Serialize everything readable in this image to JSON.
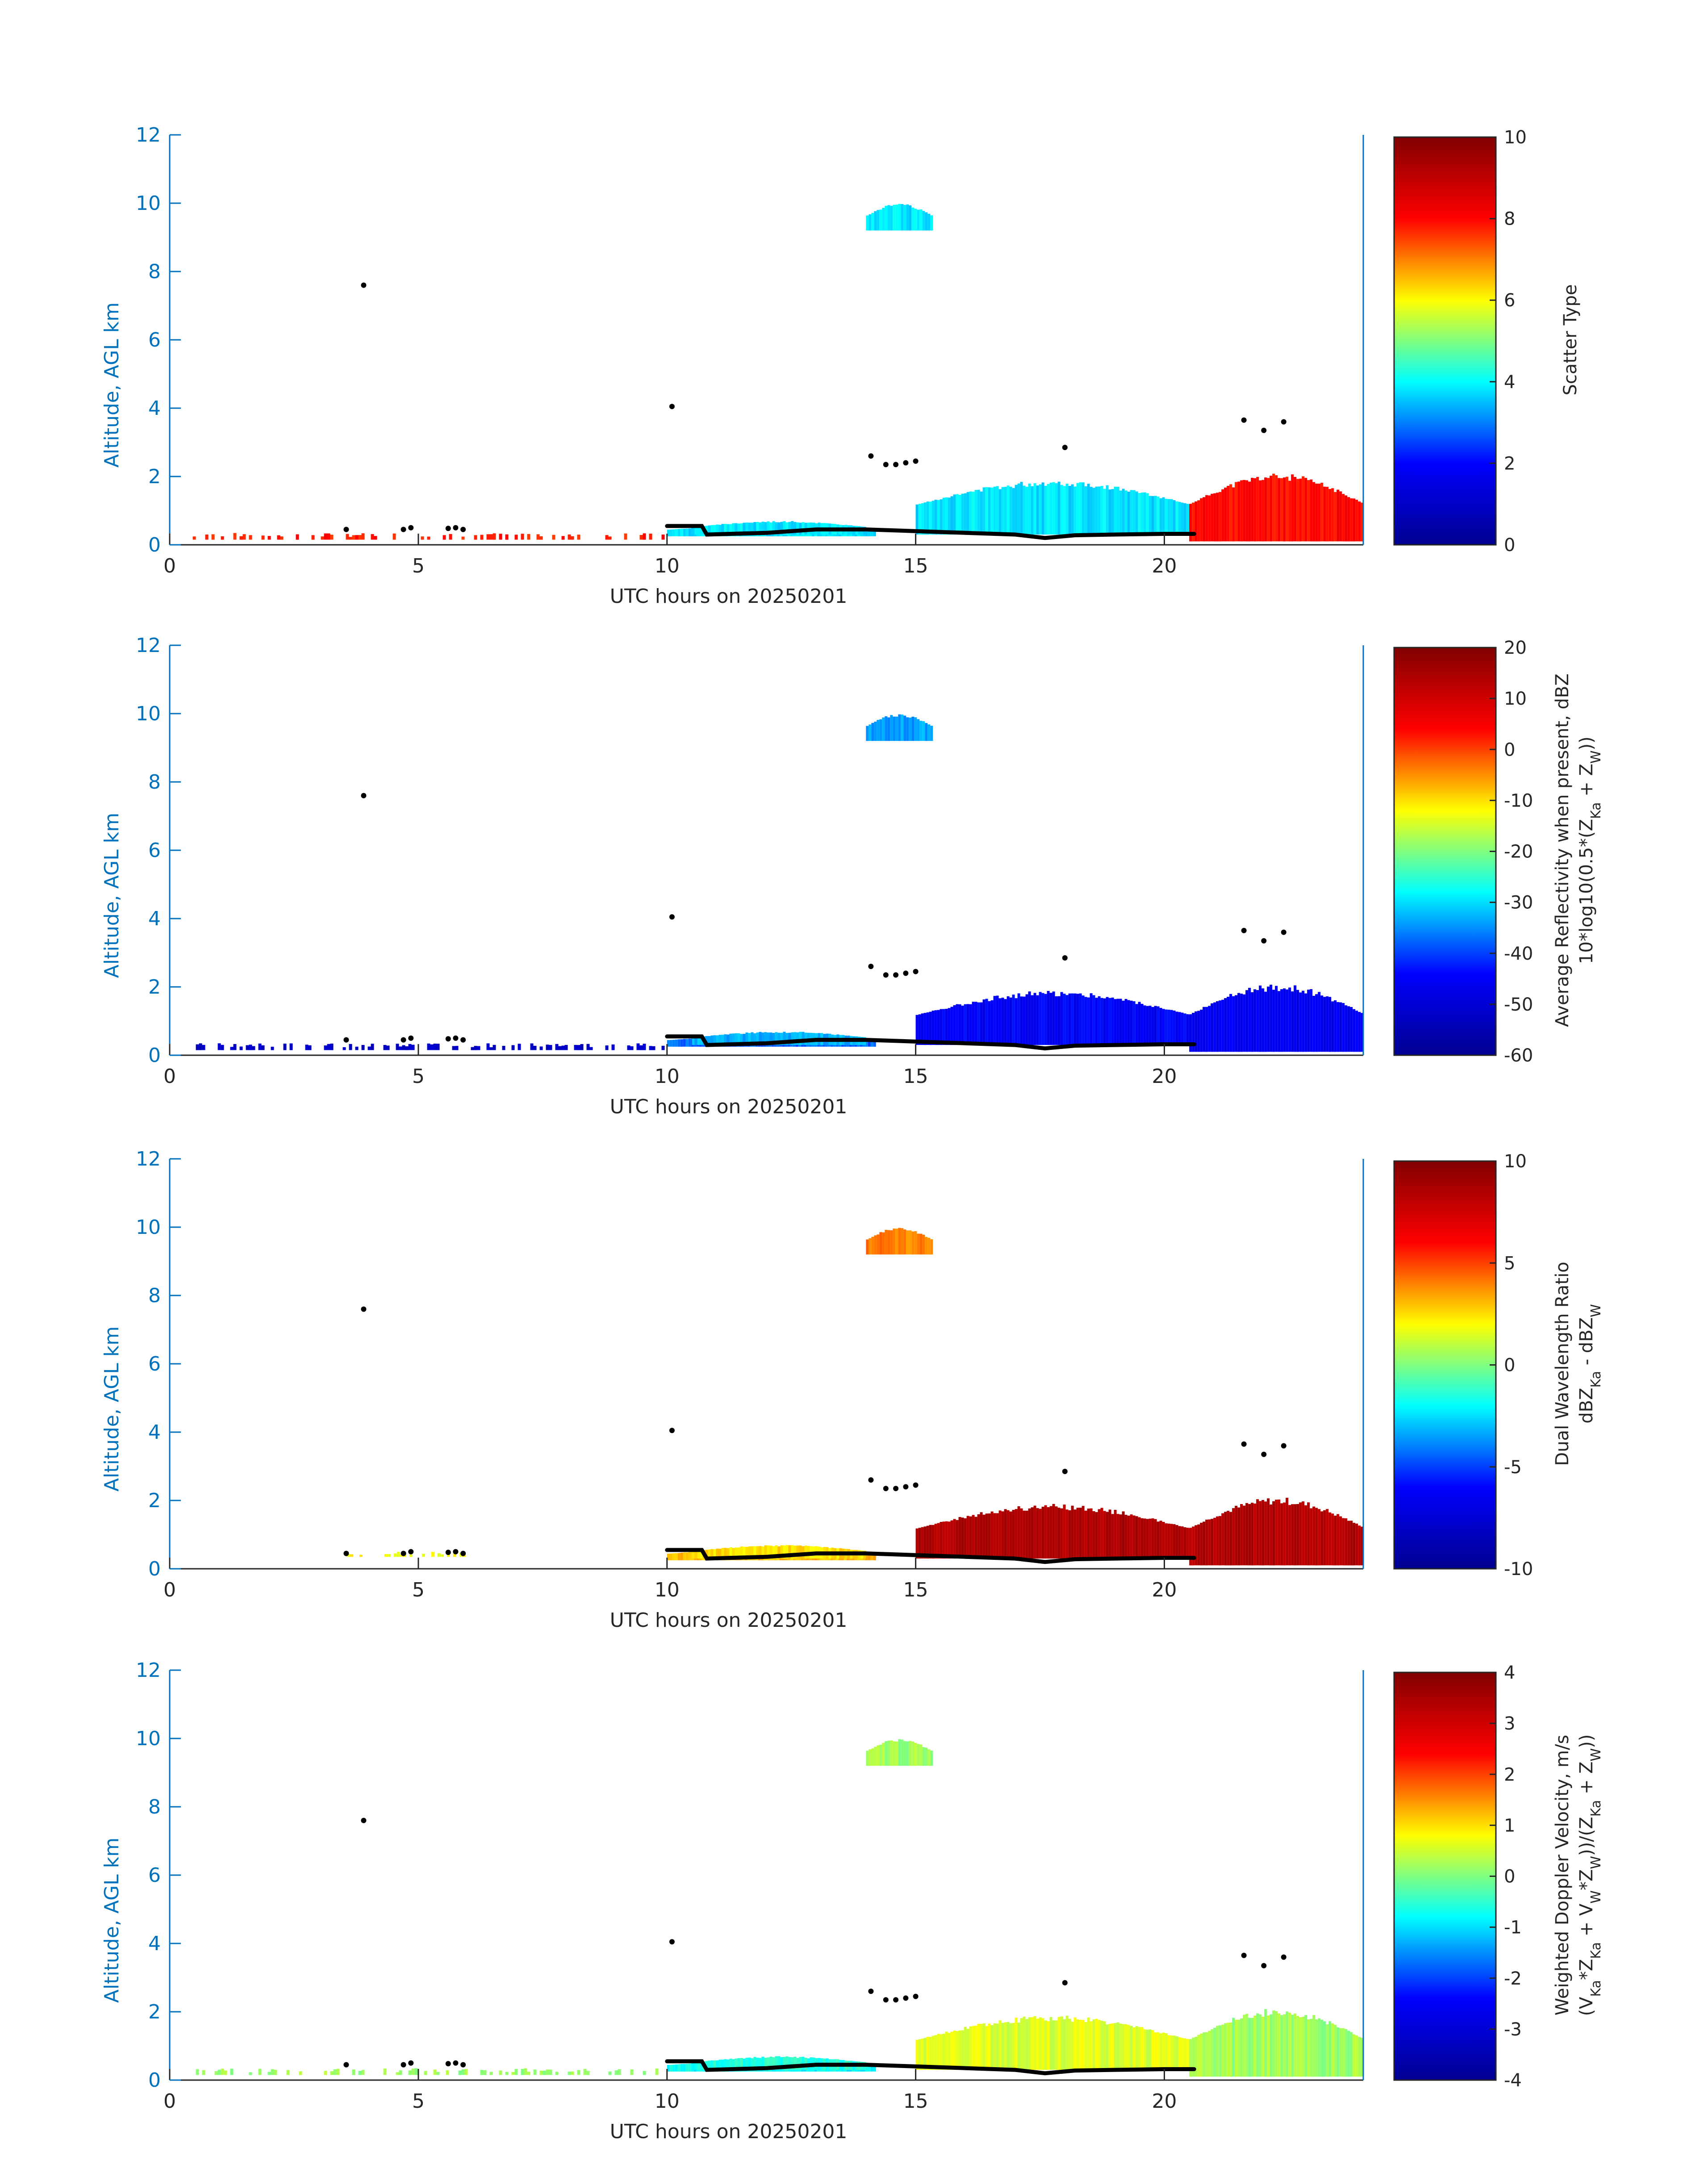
{
  "figure": {
    "jet_stops": [
      "#00008f",
      "#0000ff",
      "#00ffff",
      "#ffff00",
      "#ff0000",
      "#800000"
    ],
    "axis_color": "#0072bd",
    "label_color": "#262626"
  },
  "chart_data": [
    {
      "type": "heatmap",
      "name": "scatter-type",
      "xlabel": "UTC hours on 20250201",
      "ylabel": "Altitude, AGL km",
      "xlim": [
        0,
        24
      ],
      "ylim": [
        0,
        12
      ],
      "xticks": [
        "0",
        "5",
        "10",
        "15",
        "20"
      ],
      "yticks": [
        "0",
        "2",
        "4",
        "6",
        "8",
        "10",
        "12"
      ],
      "grid": false,
      "colorbar": {
        "label_lines": [
          "Scatter Type"
        ],
        "clim": [
          0,
          10
        ],
        "ticks": [
          "0",
          "2",
          "4",
          "6",
          "8",
          "10"
        ]
      },
      "regions": [
        {
          "x": [
            0.4,
            10.0
          ],
          "y": [
            0.15,
            0.35
          ],
          "value": 7.8,
          "sparse": true
        },
        {
          "x": [
            10.0,
            14.2
          ],
          "y": [
            0.25,
            0.6
          ],
          "value": 3.8
        },
        {
          "x": [
            10.5,
            14.0
          ],
          "y": [
            0.3,
            0.7
          ],
          "value": 3.8
        },
        {
          "x": [
            15.0,
            20.5
          ],
          "y": [
            0.3,
            1.9
          ],
          "value": 3.8
        },
        {
          "x": [
            20.5,
            24.0
          ],
          "y": [
            0.1,
            2.1
          ],
          "value": 8.0
        },
        {
          "x": [
            14.0,
            15.3
          ],
          "y": [
            9.2,
            10.0
          ],
          "value": 3.8
        }
      ]
    },
    {
      "type": "heatmap",
      "name": "reflectivity",
      "xlabel": "UTC hours on 20250201",
      "ylabel": "Altitude, AGL km",
      "xlim": [
        0,
        24
      ],
      "ylim": [
        0,
        12
      ],
      "xticks": [
        "0",
        "5",
        "10",
        "15",
        "20"
      ],
      "yticks": [
        "0",
        "2",
        "4",
        "6",
        "8",
        "10",
        "12"
      ],
      "grid": false,
      "colorbar": {
        "label_lines": [
          "Average Reflectivity when present, dBZ",
          "10*log10(0.5*(Z",
          "Ka",
          " + Z",
          "W",
          "))"
        ],
        "clim": [
          -60,
          20
        ],
        "ticks": [
          "-60",
          "-50",
          "-40",
          "-30",
          "-20",
          "-10",
          "0",
          "10",
          "20"
        ]
      },
      "regions": [
        {
          "x": [
            0.4,
            10.0
          ],
          "y": [
            0.15,
            0.35
          ],
          "value": -52,
          "sparse": true
        },
        {
          "x": [
            10.0,
            14.2
          ],
          "y": [
            0.25,
            0.6
          ],
          "value": -38
        },
        {
          "x": [
            10.5,
            14.0
          ],
          "y": [
            0.3,
            0.7
          ],
          "value": -33
        },
        {
          "x": [
            15.0,
            20.5
          ],
          "y": [
            0.3,
            1.9
          ],
          "value": -45
        },
        {
          "x": [
            20.5,
            24.0
          ],
          "y": [
            0.1,
            2.1
          ],
          "value": -47
        },
        {
          "x": [
            14.0,
            15.3
          ],
          "y": [
            9.2,
            10.0
          ],
          "value": -34
        }
      ]
    },
    {
      "type": "heatmap",
      "name": "dual-wavelength-ratio",
      "xlabel": "UTC hours on 20250201",
      "ylabel": "Altitude, AGL km",
      "xlim": [
        0,
        24
      ],
      "ylim": [
        0,
        12
      ],
      "xticks": [
        "0",
        "5",
        "10",
        "15",
        "20"
      ],
      "yticks": [
        "0",
        "2",
        "4",
        "6",
        "8",
        "10",
        "12"
      ],
      "grid": false,
      "colorbar": {
        "label_lines": [
          "Dual Wavelength Ratio",
          "dBZ",
          "Ka",
          " - dBZ",
          "W"
        ],
        "clim": [
          -10,
          10
        ],
        "ticks": [
          "-10",
          "-5",
          "0",
          "5",
          "10"
        ]
      },
      "regions": [
        {
          "x": [
            3.5,
            6.1
          ],
          "y": [
            0.35,
            0.5
          ],
          "value": 2,
          "sparse": true
        },
        {
          "x": [
            10.0,
            14.2
          ],
          "y": [
            0.25,
            0.6
          ],
          "value": 3
        },
        {
          "x": [
            10.5,
            14.0
          ],
          "y": [
            0.3,
            0.7
          ],
          "value": 2.5
        },
        {
          "x": [
            15.0,
            20.5
          ],
          "y": [
            0.3,
            1.9
          ],
          "value": 8.5
        },
        {
          "x": [
            20.5,
            24.0
          ],
          "y": [
            0.1,
            2.1
          ],
          "value": 8.5
        },
        {
          "x": [
            14.0,
            15.3
          ],
          "y": [
            9.2,
            10.0
          ],
          "value": 4
        }
      ]
    },
    {
      "type": "heatmap",
      "name": "doppler-velocity",
      "xlabel": "UTC hours on 20250201",
      "ylabel": "Altitude, AGL km",
      "xlim": [
        0,
        24
      ],
      "ylim": [
        0,
        12
      ],
      "xticks": [
        "0",
        "5",
        "10",
        "15",
        "20"
      ],
      "yticks": [
        "0",
        "2",
        "4",
        "6",
        "8",
        "10",
        "12"
      ],
      "grid": false,
      "colorbar": {
        "label_lines": [
          "Weighted Doppler Velocity, m/s",
          "(V",
          "Ka",
          "*Z",
          "Ka",
          " + V",
          "W",
          "*Z",
          "W",
          "))/(Z",
          "Ka",
          " + Z",
          "W",
          "))"
        ],
        "clim": [
          -4,
          4
        ],
        "ticks": [
          "-4",
          "-3",
          "-2",
          "-1",
          "0",
          "1",
          "2",
          "3",
          "4"
        ]
      },
      "regions": [
        {
          "x": [
            0.4,
            10.0
          ],
          "y": [
            0.15,
            0.35
          ],
          "value": 0.2,
          "sparse": true
        },
        {
          "x": [
            10.0,
            14.2
          ],
          "y": [
            0.25,
            0.6
          ],
          "value": -0.8
        },
        {
          "x": [
            10.5,
            14.0
          ],
          "y": [
            0.3,
            0.7
          ],
          "value": -0.6
        },
        {
          "x": [
            15.0,
            20.5
          ],
          "y": [
            0.3,
            1.9
          ],
          "value": 0.6
        },
        {
          "x": [
            20.5,
            24.0
          ],
          "y": [
            0.1,
            2.1
          ],
          "value": 0.2
        },
        {
          "x": [
            14.0,
            15.3
          ],
          "y": [
            9.2,
            10.0
          ],
          "value": 0.2
        }
      ]
    }
  ],
  "cloud_base_points": [
    [
      3.9,
      7.6
    ],
    [
      10.1,
      4.05
    ],
    [
      14.1,
      2.6
    ],
    [
      14.4,
      2.35
    ],
    [
      14.6,
      2.35
    ],
    [
      14.8,
      2.4
    ],
    [
      15.0,
      2.45
    ],
    [
      18.0,
      2.85
    ],
    [
      21.6,
      3.65
    ],
    [
      22.0,
      3.35
    ],
    [
      22.4,
      3.6
    ],
    [
      3.55,
      0.45
    ],
    [
      4.7,
      0.45
    ],
    [
      4.85,
      0.5
    ],
    [
      5.6,
      0.48
    ],
    [
      5.75,
      0.5
    ],
    [
      5.9,
      0.45
    ]
  ],
  "cloud_base_line": [
    [
      10.0,
      0.55
    ],
    [
      10.7,
      0.55
    ],
    [
      10.8,
      0.3
    ],
    [
      12.0,
      0.35
    ],
    [
      13.0,
      0.45
    ],
    [
      14.0,
      0.45
    ],
    [
      15.0,
      0.4
    ],
    [
      16.0,
      0.35
    ],
    [
      17.0,
      0.3
    ],
    [
      17.6,
      0.2
    ],
    [
      18.2,
      0.28
    ],
    [
      19.0,
      0.3
    ],
    [
      20.0,
      0.32
    ],
    [
      20.6,
      0.32
    ]
  ]
}
